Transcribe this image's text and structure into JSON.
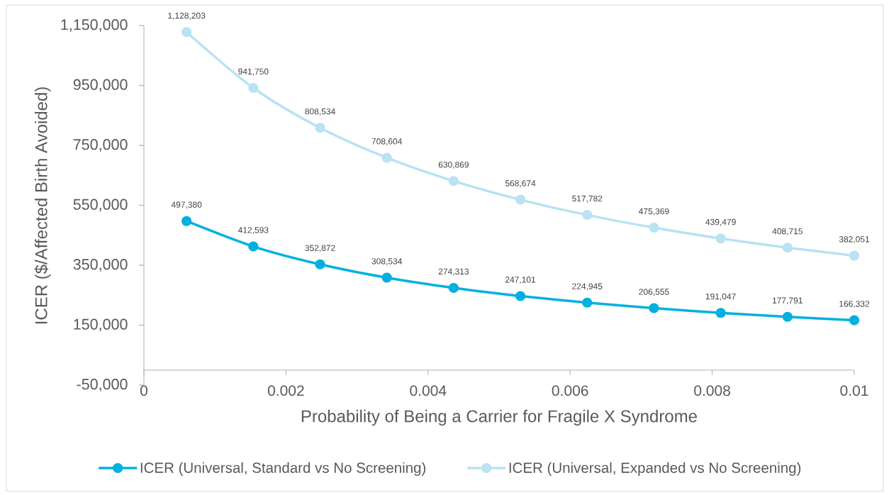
{
  "chart_data": {
    "type": "line",
    "xlabel": "Probability of Being a Carrier for Fragile X Syndrome",
    "ylabel": "ICER ($/Affected Birth Avoided)",
    "x": [
      0.0006,
      0.00154,
      0.00248,
      0.00342,
      0.00436,
      0.0053,
      0.00624,
      0.00718,
      0.00812,
      0.00906,
      0.01
    ],
    "series": [
      {
        "name": "ICER (Universal, Standard vs No Screening)",
        "color": "#00b0e0",
        "values": [
          497380,
          412593,
          352872,
          308534,
          274313,
          247101,
          224945,
          206555,
          191047,
          177791,
          166332
        ],
        "value_labels": [
          "497,380",
          "412,593",
          "352,872",
          "308,534",
          "274,313",
          "247,101",
          "224,945",
          "206,555",
          "191,047",
          "177,791",
          "166,332"
        ]
      },
      {
        "name": "ICER (Universal, Expanded vs No Screening)",
        "color": "#b9e2f3",
        "values": [
          1128203,
          941750,
          808534,
          708604,
          630869,
          568674,
          517782,
          475369,
          439479,
          408715,
          382051
        ],
        "value_labels": [
          "1,128,203",
          "941,750",
          "808,534",
          "708,604",
          "630,869",
          "568,674",
          "517,782",
          "475,369",
          "439,479",
          "408,715",
          "382,051"
        ]
      }
    ],
    "xlim": [
      0,
      0.01
    ],
    "xticks": [
      0,
      0.002,
      0.004,
      0.006,
      0.008,
      0.01
    ],
    "ylim": [
      -50000,
      1150000
    ],
    "yticks": [
      {
        "value": -50000,
        "label": "-50,000"
      },
      {
        "value": 150000,
        "label": "150,000"
      },
      {
        "value": 350000,
        "label": "350,000"
      },
      {
        "value": 550000,
        "label": "550,000"
      },
      {
        "value": 750000,
        "label": "750,000"
      },
      {
        "value": 950000,
        "label": "950,000"
      },
      {
        "value": 1150000,
        "label": "1,150,000"
      }
    ],
    "legend": "bottom",
    "marker": "circle",
    "line_style": "solid"
  }
}
